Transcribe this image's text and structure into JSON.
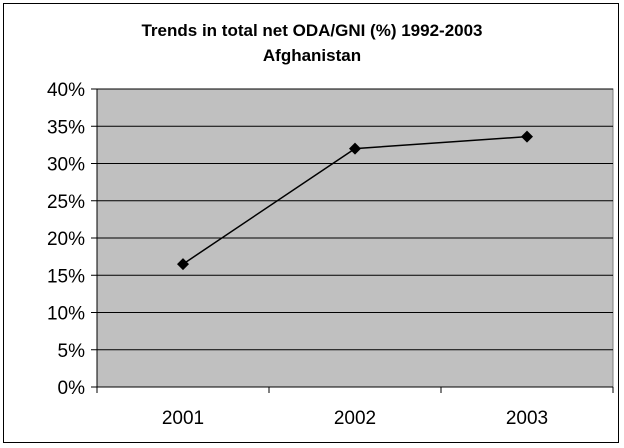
{
  "chart_data": {
    "type": "line",
    "title": "Trends in total net ODA/GNI (%) 1992-2003",
    "subtitle": "Afghanistan",
    "xlabel": "",
    "ylabel": "",
    "categories": [
      "2001",
      "2002",
      "2003"
    ],
    "series": [
      {
        "values": [
          16.5,
          32.0,
          33.6
        ],
        "color": "#000000",
        "marker": "diamond"
      }
    ],
    "ylim": [
      0,
      40
    ],
    "yticks": [
      0,
      5,
      10,
      15,
      20,
      25,
      30,
      35,
      40
    ],
    "ytick_labels": [
      "0%",
      "5%",
      "10%",
      "15%",
      "20%",
      "25%",
      "30%",
      "35%",
      "40%"
    ],
    "grid": true,
    "legend": "none",
    "plot_background": "#c0c0c0"
  }
}
